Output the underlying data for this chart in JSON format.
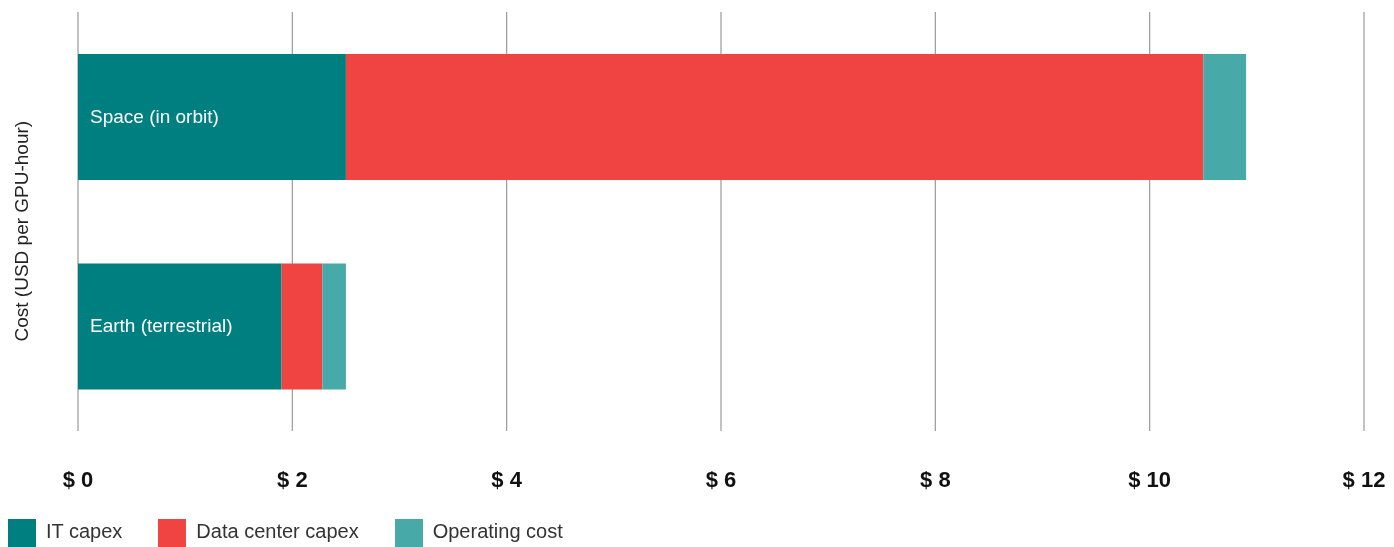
{
  "chart_data": {
    "type": "bar",
    "orientation": "horizontal",
    "stacked": true,
    "ylabel": "Cost (USD per GPU-hour)",
    "categories": [
      "Space (in orbit)",
      "Earth (terrestrial)"
    ],
    "series": [
      {
        "name": "IT capex",
        "color": "#007f80",
        "values": [
          2.5,
          1.9
        ]
      },
      {
        "name": "Data center capex",
        "color": "#ef4441",
        "values": [
          8.0,
          0.38
        ]
      },
      {
        "name": "Operating cost",
        "color": "#48a9a9",
        "values": [
          0.4,
          0.22
        ]
      }
    ],
    "xlim": [
      0,
      12
    ],
    "xticks": [
      {
        "value": 0,
        "label": "$ 0"
      },
      {
        "value": 2,
        "label": "$ 2"
      },
      {
        "value": 4,
        "label": "$ 4"
      },
      {
        "value": 6,
        "label": "$ 6"
      },
      {
        "value": 8,
        "label": "$ 8"
      },
      {
        "value": 10,
        "label": "$ 10"
      },
      {
        "value": 12,
        "label": "$ 12"
      }
    ],
    "grid": "x",
    "legend": "bottom left"
  }
}
